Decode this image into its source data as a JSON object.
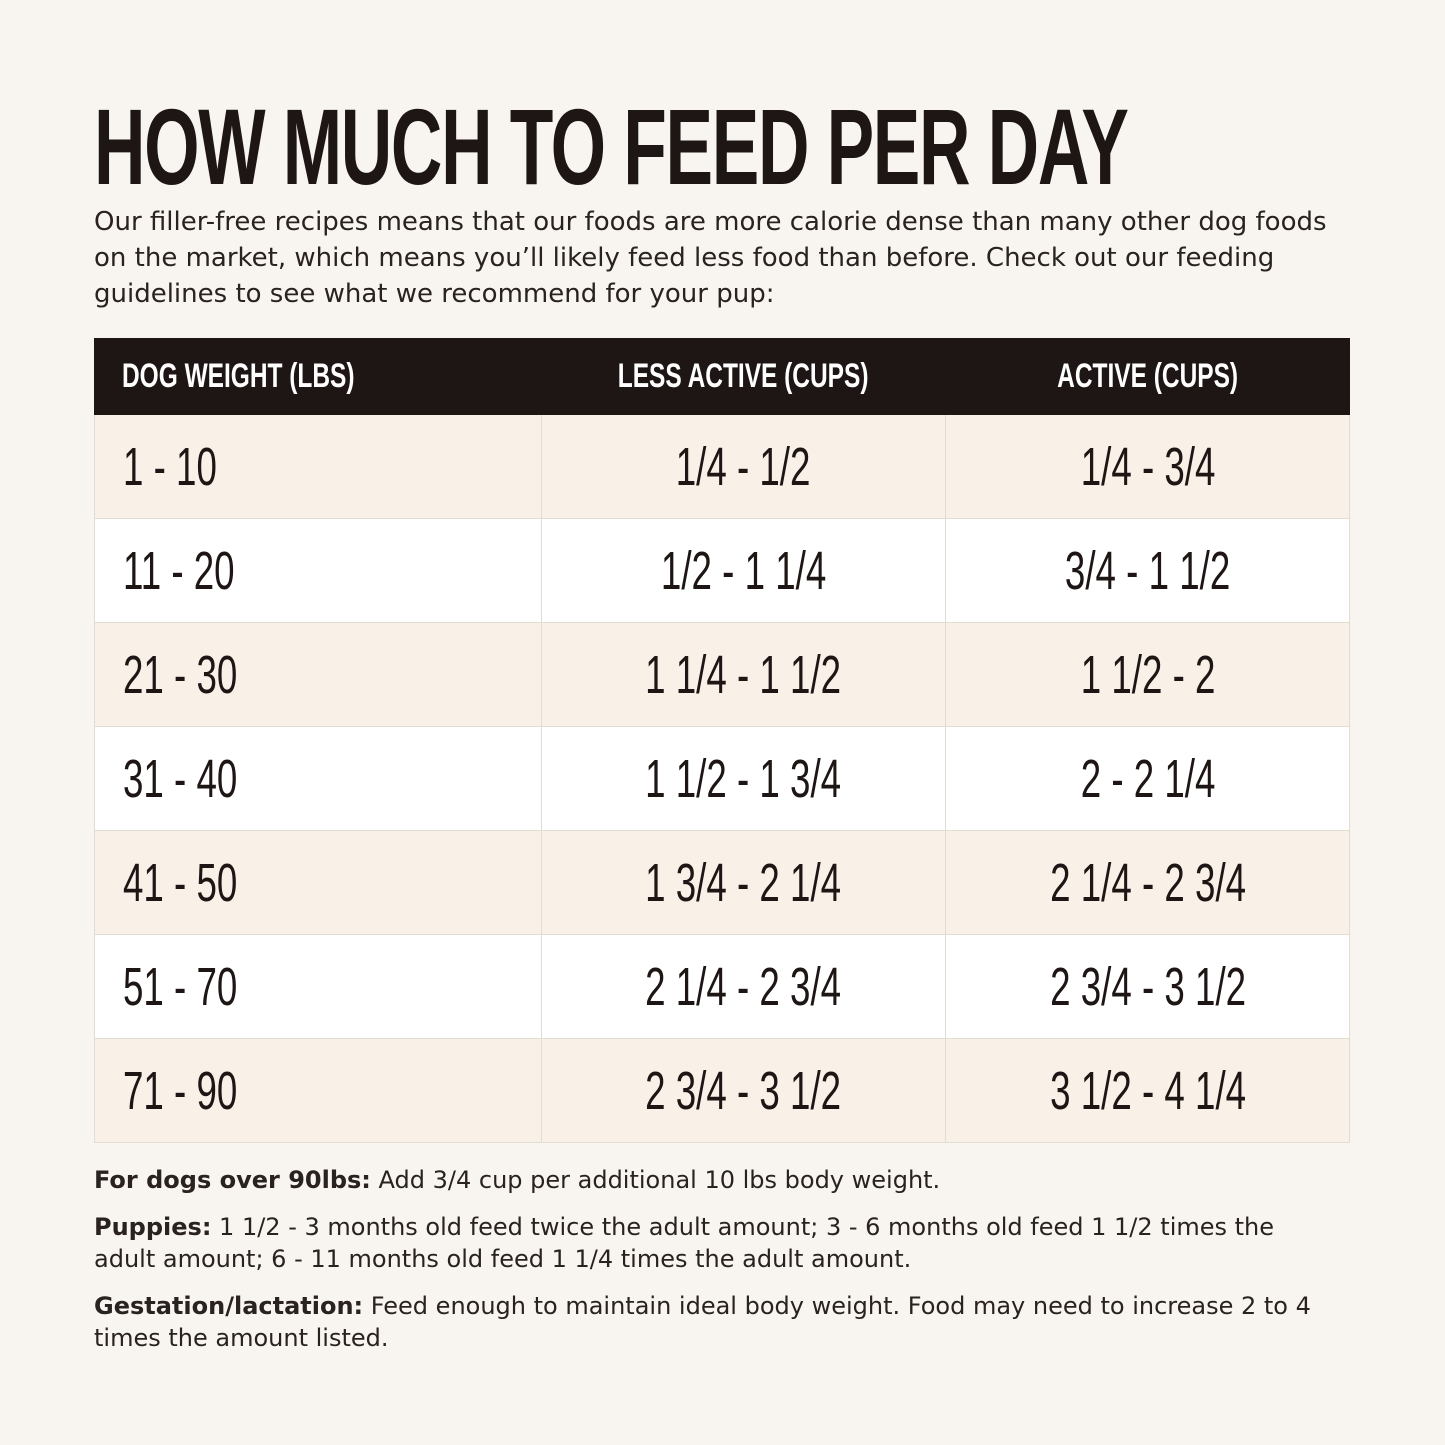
{
  "title": "HOW MUCH TO FEED PER DAY",
  "intro": "Our filler-free recipes means that our foods are more calorie dense than many other dog foods on the market, which means you’ll likely feed less food than before. Check out our feeding guidelines to see what we recommend for your pup:",
  "table": {
    "headers": [
      "DOG WEIGHT (LBS)",
      "LESS ACTIVE (CUPS)",
      "ACTIVE (CUPS)"
    ],
    "rows": [
      [
        "1 - 10",
        "1/4 - 1/2",
        "1/4 - 3/4"
      ],
      [
        "11 - 20",
        "1/2 - 1 1/4",
        "3/4 - 1 1/2"
      ],
      [
        "21 - 30",
        "1 1/4 - 1 1/2",
        "1 1/2 - 2"
      ],
      [
        "31 - 40",
        "1 1/2 - 1 3/4",
        "2 - 2 1/4"
      ],
      [
        "41 - 50",
        "1 3/4 - 2 1/4",
        "2 1/4 - 2 3/4"
      ],
      [
        "51 - 70",
        "2 1/4 - 2 3/4",
        "2 3/4 - 3 1/2"
      ],
      [
        "71 - 90",
        "2 3/4 - 3 1/2",
        "3 1/2 - 4 1/4"
      ]
    ]
  },
  "notes": [
    {
      "label": "For dogs over 90lbs:",
      "text": " Add 3/4 cup per additional 10 lbs body weight."
    },
    {
      "label": "Puppies:",
      "text": " 1 1/2 - 3 months old feed twice the adult amount; 3 - 6 months old feed 1 1/2 times the adult amount; 6 - 11 months old feed 1 1/4 times the adult amount."
    },
    {
      "label": "Gestation/lactation:",
      "text": " Feed enough to maintain ideal body weight. Food may need to increase 2 to 4 times the amount listed."
    }
  ],
  "colors": {
    "background": "#f8f5f0",
    "header": "#1e1614",
    "row_alt": "#f9f1e8",
    "row": "#ffffff"
  }
}
